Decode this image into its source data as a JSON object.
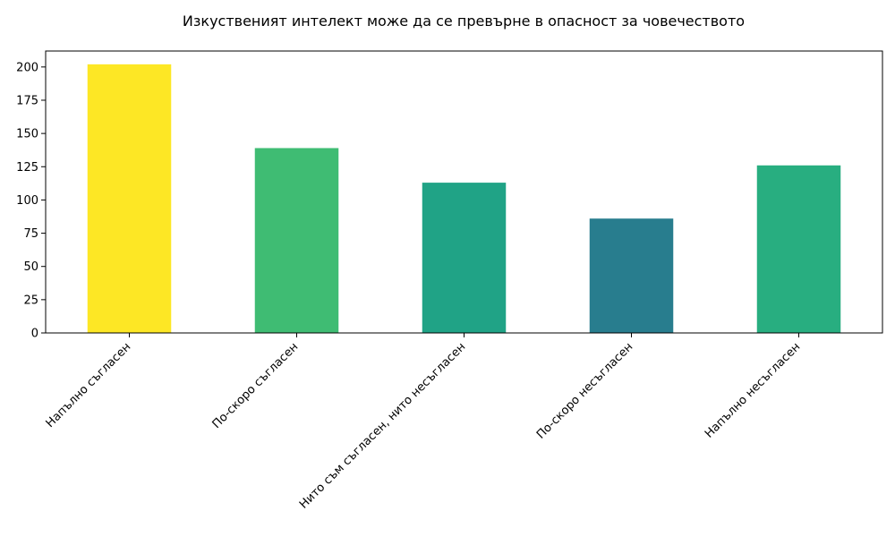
{
  "chart_data": {
    "type": "bar",
    "title": "Изкуственият интелект може да се превърне в опасност за човечеството",
    "xlabel": "",
    "ylabel": "",
    "categories": [
      "Напълно съгласен",
      "По-скоро съгласен",
      "Нито съм съгласен, нито несъгласен",
      "По-скоро несъгласен",
      "Напълно несъгласен"
    ],
    "values": [
      202,
      139,
      113,
      86,
      126
    ],
    "colors": [
      "#fde725",
      "#3fbc73",
      "#20a386",
      "#287d8e",
      "#28ae80"
    ],
    "ylim": [
      0,
      212
    ],
    "yticks": [
      0,
      25,
      50,
      75,
      100,
      125,
      150,
      175,
      200
    ],
    "grid": false,
    "legend": "none"
  }
}
